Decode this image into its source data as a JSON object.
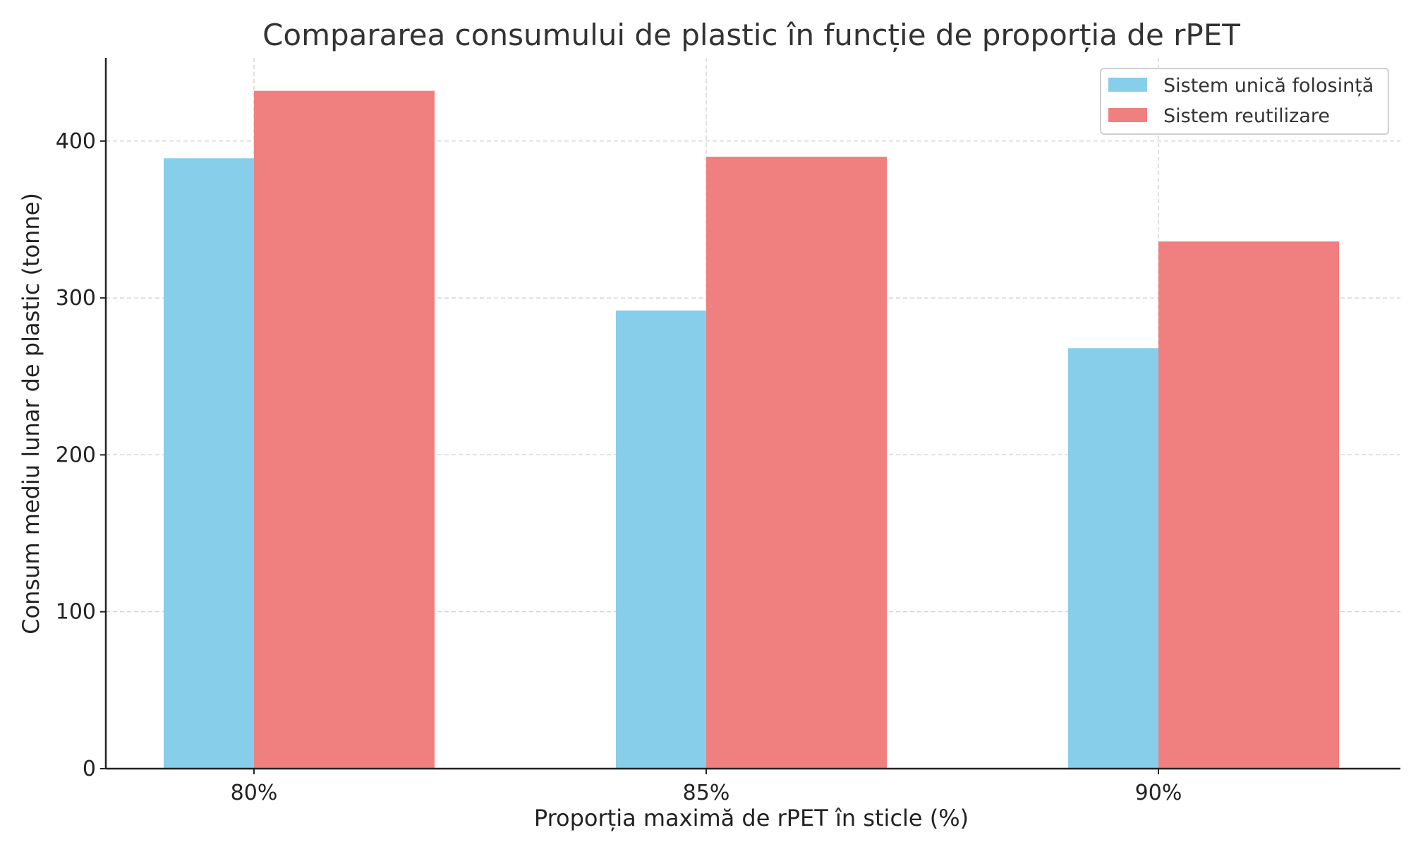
{
  "chart_data": {
    "type": "bar",
    "title": "Compararea consumului de plastic în funcție de proporția de rPET",
    "xlabel": "Proporția maximă de rPET în sticle (%)",
    "ylabel": "Consum mediu lunar de plastic (tonne)",
    "categories": [
      "80%",
      "85%",
      "90%"
    ],
    "series": [
      {
        "name": "Sistem unică folosință",
        "color": "#87CEEB",
        "values": [
          389,
          292,
          268
        ]
      },
      {
        "name": "Sistem reutilizare",
        "color": "#F08080",
        "values": [
          432,
          390,
          336
        ]
      }
    ],
    "ylim": [
      0,
      453
    ],
    "yticks": [
      0,
      100,
      200,
      300,
      400
    ],
    "grid": true,
    "legend_position": "top-right"
  }
}
